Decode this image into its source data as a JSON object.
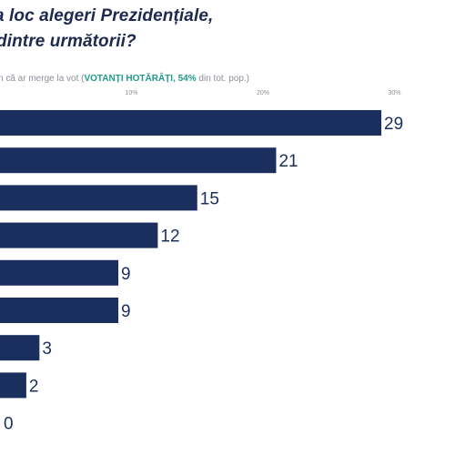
{
  "header": {
    "title_line1": "a loc alegeri Prezidențiale,",
    "title_line2": "dintre următorii?",
    "subtitle_prefix": "n că ar merge la vot (",
    "subtitle_highlight": "VOTANȚI HOTĂRÂȚI, 54%",
    "subtitle_suffix": " din tot. pop.)"
  },
  "chart_data": {
    "type": "bar",
    "orientation": "horizontal",
    "title": "",
    "xlabel": "",
    "ylabel": "",
    "xlim": [
      0,
      30
    ],
    "tick_labels": [
      "10%",
      "20%",
      "30%"
    ],
    "values": [
      29,
      21,
      15,
      12,
      9,
      9,
      3,
      2,
      0
    ],
    "bar_color": "#1b2f5e",
    "label_color": "#1b2f5e",
    "grid": false
  }
}
